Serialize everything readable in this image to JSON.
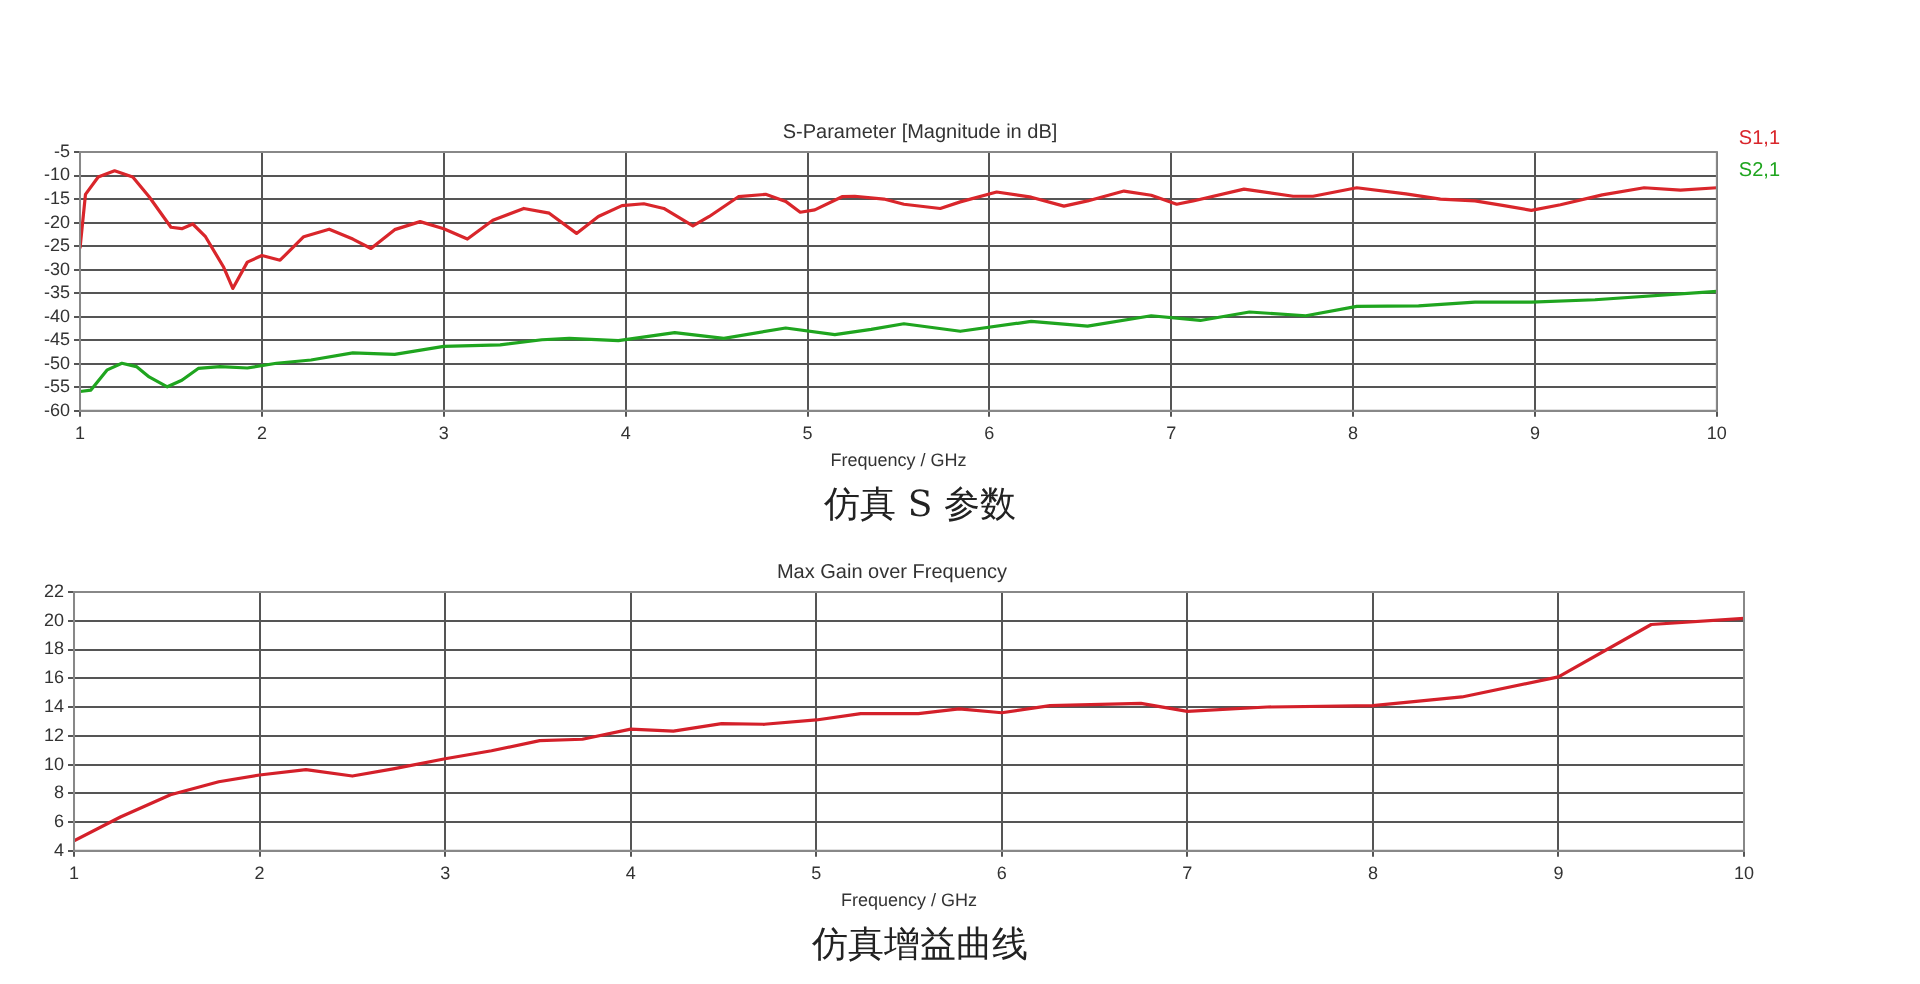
{
  "chart_data": [
    {
      "type": "line",
      "title": "S-Parameter [Magnitude in dB]",
      "xlabel": "Frequency / GHz",
      "xlim": [
        1,
        10
      ],
      "xticks": [
        1,
        2,
        3,
        4,
        5,
        6,
        7,
        8,
        9,
        10
      ],
      "ylim": [
        -60,
        -5
      ],
      "yticks": [
        -60,
        -55,
        -50,
        -45,
        -40,
        -35,
        -30,
        -25,
        -20,
        -15,
        -10,
        -5
      ],
      "grid": true,
      "legend": "top right",
      "marker": "none",
      "line_style": "solid",
      "series": [
        {
          "name": "S1,1",
          "color": "#d9262b",
          "x": [
            1,
            1.03,
            1.1,
            1.19,
            1.29,
            1.38,
            1.5,
            1.56,
            1.62,
            1.69,
            1.79,
            1.84,
            1.92,
            2.0,
            2.1,
            2.23,
            2.37,
            2.5,
            2.6,
            2.73,
            2.87,
            3.0,
            3.13,
            3.27,
            3.44,
            3.58,
            3.73,
            3.85,
            3.98,
            4.1,
            4.21,
            4.37,
            4.46,
            4.62,
            4.77,
            4.88,
            4.96,
            5.04,
            5.19,
            5.26,
            5.42,
            5.53,
            5.73,
            5.84,
            6.04,
            6.23,
            6.41,
            6.54,
            6.74,
            6.89,
            7.03,
            7.12,
            7.4,
            7.67,
            7.78,
            8.02,
            8.29,
            8.48,
            8.67,
            8.83,
            8.98,
            9.14,
            9.37,
            9.6,
            9.8,
            10
          ],
          "values": [
            -25.5,
            -14,
            -10.3,
            -9,
            -10.3,
            -14.5,
            -21,
            -21.3,
            -20.3,
            -23,
            -29.5,
            -34,
            -28.4,
            -27,
            -28,
            -23,
            -21.4,
            -23.5,
            -25.5,
            -21.5,
            -19.8,
            -21.3,
            -23.5,
            -19.5,
            -17,
            -18,
            -22.3,
            -18.7,
            -16.4,
            -16,
            -17,
            -20.7,
            -18.7,
            -14.5,
            -14,
            -15.5,
            -17.8,
            -17.3,
            -14.5,
            -14.4,
            -15,
            -16.1,
            -17,
            -15.6,
            -13.5,
            -14.6,
            -16.5,
            -15.4,
            -13.3,
            -14.2,
            -16.1,
            -15.4,
            -12.9,
            -14.4,
            -14.4,
            -12.6,
            -13.9,
            -15,
            -15.4,
            -16.4,
            -17.4,
            -16.2,
            -14.1,
            -12.6,
            -13.1,
            -12.6
          ]
        },
        {
          "name": "S2,1",
          "color": "#1fa51f",
          "x": [
            1,
            1.06,
            1.15,
            1.23,
            1.31,
            1.38,
            1.48,
            1.56,
            1.65,
            1.77,
            1.92,
            2.08,
            2.27,
            2.5,
            2.73,
            3.0,
            3.31,
            3.54,
            3.69,
            3.96,
            4.27,
            4.54,
            4.88,
            5.15,
            5.35,
            5.53,
            5.84,
            6.23,
            6.54,
            6.89,
            7.16,
            7.43,
            7.74,
            8.02,
            8.36,
            8.67,
            8.98,
            9.33,
            10
          ],
          "values": [
            -55.9,
            -55.6,
            -51.3,
            -49.9,
            -50.6,
            -52.8,
            -54.9,
            -53.5,
            -51,
            -50.6,
            -50.9,
            -49.9,
            -49.2,
            -47.7,
            -48,
            -46.3,
            -46,
            -44.9,
            -44.6,
            -45.1,
            -43.4,
            -44.6,
            -42.4,
            -43.8,
            -42.7,
            -41.5,
            -43.1,
            -41,
            -42,
            -39.8,
            -40.8,
            -39,
            -39.8,
            -37.8,
            -37.7,
            -36.9,
            -36.9,
            -36.4,
            -34.6
          ]
        }
      ],
      "annotations": [
        "仿真 S 参数"
      ]
    },
    {
      "type": "line",
      "title": "Max Gain over Frequency",
      "xlabel": "Frequency / GHz",
      "xlim": [
        1,
        10
      ],
      "xticks": [
        1,
        2,
        3,
        4,
        5,
        6,
        7,
        8,
        9,
        10
      ],
      "ylim": [
        4,
        22
      ],
      "yticks": [
        4,
        6,
        8,
        10,
        12,
        14,
        16,
        18,
        20,
        22
      ],
      "grid": true,
      "marker": "none",
      "line_style": "solid",
      "series": [
        {
          "color": "#d4202a",
          "x": [
            1,
            1.25,
            1.52,
            1.78,
            2,
            2.25,
            2.5,
            2.72,
            3.0,
            3.25,
            3.51,
            3.74,
            4.0,
            4.23,
            4.49,
            4.72,
            5.0,
            5.24,
            5.55,
            5.77,
            6,
            6.26,
            6.75,
            7,
            7.43,
            8,
            8.48,
            9,
            9.5,
            10
          ],
          "values": [
            4.7,
            6.35,
            7.9,
            8.8,
            9.27,
            9.64,
            9.2,
            9.7,
            10.4,
            10.96,
            11.66,
            11.76,
            12.46,
            12.32,
            12.84,
            12.8,
            13.1,
            13.54,
            13.54,
            13.87,
            13.6,
            14.1,
            14.25,
            13.7,
            14.0,
            14.1,
            14.7,
            16.1,
            19.74,
            20.17
          ]
        }
      ],
      "annotations": [
        "仿真增益曲线"
      ]
    }
  ]
}
